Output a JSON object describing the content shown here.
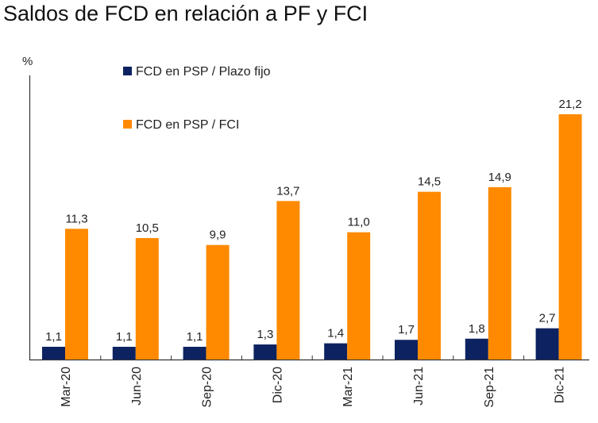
{
  "chart_data": {
    "type": "bar",
    "title": "Saldos de FCD en relación a PF y FCI",
    "ylabel": "%",
    "xlabel": "",
    "ylim": [
      0,
      21.2
    ],
    "grid": false,
    "legend_placement": "top-left",
    "categories": [
      "Mar-20",
      "Jun-20",
      "Sep-20",
      "Dic-20",
      "Mar-21",
      "Jun-21",
      "Sep-21",
      "Dic-21"
    ],
    "series": [
      {
        "name": "FCD en PSP / Plazo fijo",
        "color": "#0d2260",
        "values": [
          1.1,
          1.1,
          1.1,
          1.3,
          1.4,
          1.7,
          1.8,
          2.7
        ],
        "labels": [
          "1,1",
          "1,1",
          "1,1",
          "1,3",
          "1,4",
          "1,7",
          "1,8",
          "2,7"
        ]
      },
      {
        "name": "FCD en PSP / FCI",
        "color": "#ff8a00",
        "values": [
          11.3,
          10.5,
          9.9,
          13.7,
          11.0,
          14.5,
          14.9,
          21.2
        ],
        "labels": [
          "11,3",
          "10,5",
          "9,9",
          "13,7",
          "11,0",
          "14,5",
          "14,9",
          "21,2"
        ]
      }
    ]
  }
}
